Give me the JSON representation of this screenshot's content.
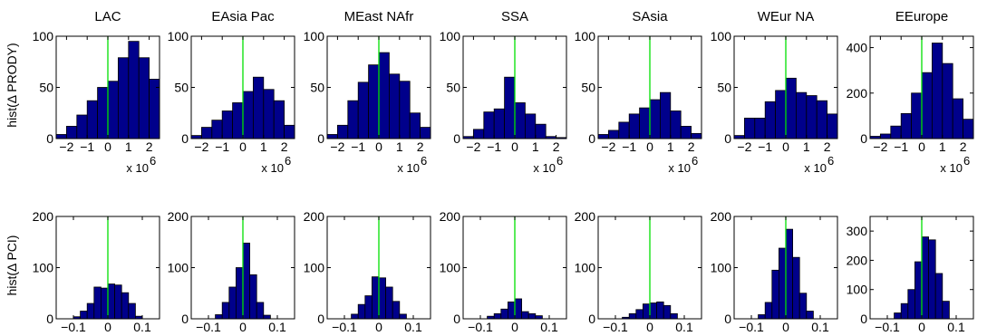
{
  "colors": {
    "bar_fill": "#00008b",
    "bar_edge": "#000000",
    "zero_line": "#00e000",
    "axes": "#000000"
  },
  "figure": {
    "row_labels": [
      "hist(Δ PRODY)",
      "hist(Δ PCI)"
    ],
    "x_exponent_label": "x 10",
    "x_exponent_power": "6"
  },
  "chart_data": [
    {
      "type": "bar",
      "row": "PRODY",
      "title": "LAC",
      "ylabel": "hist(Δ PRODY)",
      "xlim": [
        -2.5,
        2.5
      ],
      "ylim": [
        0,
        100
      ],
      "xticks": [
        -2,
        -1,
        0,
        1,
        2
      ],
      "xtick_labels": [
        "−2",
        "−1",
        "0",
        "1",
        "2"
      ],
      "yticks": [
        0,
        50,
        100
      ],
      "ytick_labels": [
        "0",
        "50",
        "100"
      ],
      "x_scale_note": "x 10^6",
      "bins": [
        -2.25,
        -1.75,
        -1.25,
        -0.75,
        -0.25,
        0.25,
        0.75,
        1.25,
        1.75,
        2.25
      ],
      "bin_width": 0.5,
      "values": [
        4,
        12,
        23,
        37,
        50,
        56,
        79,
        95,
        79,
        58
      ]
    },
    {
      "type": "bar",
      "row": "PRODY",
      "title": "EAsia Pac",
      "xlim": [
        -2.5,
        2.5
      ],
      "ylim": [
        0,
        100
      ],
      "xticks": [
        -2,
        -1,
        0,
        1,
        2
      ],
      "xtick_labels": [
        "−2",
        "−1",
        "0",
        "1",
        "2"
      ],
      "yticks": [
        0,
        50,
        100
      ],
      "ytick_labels": [
        "0",
        "50",
        "100"
      ],
      "x_scale_note": "x 10^6",
      "bins": [
        -2.25,
        -1.75,
        -1.25,
        -0.75,
        -0.25,
        0.25,
        0.75,
        1.25,
        1.75,
        2.25
      ],
      "bin_width": 0.5,
      "values": [
        3,
        11,
        18,
        27,
        35,
        46,
        60,
        48,
        37,
        13
      ]
    },
    {
      "type": "bar",
      "row": "PRODY",
      "title": "MEast NAfr",
      "xlim": [
        -2.5,
        2.5
      ],
      "ylim": [
        0,
        100
      ],
      "xticks": [
        -2,
        -1,
        0,
        1,
        2
      ],
      "xtick_labels": [
        "−2",
        "−1",
        "0",
        "1",
        "2"
      ],
      "yticks": [
        0,
        50,
        100
      ],
      "ytick_labels": [
        "0",
        "50",
        "100"
      ],
      "x_scale_note": "x 10^6",
      "bins": [
        -2.25,
        -1.75,
        -1.25,
        -0.75,
        -0.25,
        0.25,
        0.75,
        1.25,
        1.75,
        2.25
      ],
      "bin_width": 0.5,
      "values": [
        4,
        13,
        37,
        55,
        72,
        84,
        63,
        56,
        25,
        11
      ]
    },
    {
      "type": "bar",
      "row": "PRODY",
      "title": "SSA",
      "xlim": [
        -2.5,
        2.5
      ],
      "ylim": [
        0,
        100
      ],
      "xticks": [
        -2,
        -1,
        0,
        1,
        2
      ],
      "xtick_labels": [
        "−2",
        "−1",
        "0",
        "1",
        "2"
      ],
      "yticks": [
        0,
        50,
        100
      ],
      "ytick_labels": [
        "0",
        "50",
        "100"
      ],
      "x_scale_note": "x 10^6",
      "bins": [
        -2.25,
        -1.75,
        -1.25,
        -0.75,
        -0.25,
        0.25,
        0.75,
        1.25,
        1.75,
        2.25
      ],
      "bin_width": 0.5,
      "values": [
        2,
        9,
        26,
        29,
        60,
        35,
        24,
        14,
        2,
        1
      ]
    },
    {
      "type": "bar",
      "row": "PRODY",
      "title": "SAsia",
      "xlim": [
        -2.5,
        2.5
      ],
      "ylim": [
        0,
        100
      ],
      "xticks": [
        -2,
        -1,
        0,
        1,
        2
      ],
      "xtick_labels": [
        "−2",
        "−1",
        "0",
        "1",
        "2"
      ],
      "yticks": [
        0,
        50,
        100
      ],
      "ytick_labels": [
        "0",
        "50",
        "100"
      ],
      "x_scale_note": "x 10^6",
      "bins": [
        -2.25,
        -1.75,
        -1.25,
        -0.75,
        -0.25,
        0.25,
        0.75,
        1.25,
        1.75,
        2.25
      ],
      "bin_width": 0.5,
      "values": [
        4,
        8,
        16,
        24,
        30,
        38,
        45,
        27,
        12,
        5
      ]
    },
    {
      "type": "bar",
      "row": "PRODY",
      "title": "WEur NA",
      "xlim": [
        -2.5,
        2.5
      ],
      "ylim": [
        0,
        100
      ],
      "xticks": [
        -2,
        -1,
        0,
        1,
        2
      ],
      "xtick_labels": [
        "−2",
        "−1",
        "0",
        "1",
        "2"
      ],
      "yticks": [
        0,
        50,
        100
      ],
      "ytick_labels": [
        "0",
        "50",
        "100"
      ],
      "x_scale_note": "x 10^6",
      "bins": [
        -2.25,
        -1.75,
        -1.25,
        -0.75,
        -0.25,
        0.25,
        0.75,
        1.25,
        1.75,
        2.25
      ],
      "bin_width": 0.5,
      "values": [
        3,
        20,
        20,
        36,
        47,
        59,
        45,
        42,
        37,
        24
      ]
    },
    {
      "type": "bar",
      "row": "PRODY",
      "title": "EEurope",
      "xlim": [
        -2.5,
        2.5
      ],
      "ylim": [
        0,
        450
      ],
      "xticks": [
        -2,
        -1,
        0,
        1,
        2
      ],
      "xtick_labels": [
        "−2",
        "−1",
        "0",
        "1",
        "2"
      ],
      "yticks": [
        0,
        200,
        400
      ],
      "ytick_labels": [
        "0",
        "200",
        "400"
      ],
      "x_scale_note": "x 10^6",
      "bins": [
        -2.25,
        -1.75,
        -1.25,
        -0.75,
        -0.25,
        0.25,
        0.75,
        1.25,
        1.75,
        2.25
      ],
      "bin_width": 0.5,
      "values": [
        10,
        20,
        55,
        110,
        200,
        290,
        420,
        330,
        175,
        85
      ]
    },
    {
      "type": "bar",
      "row": "PCI",
      "title": "",
      "ylabel": "hist(Δ PCI)",
      "xlim": [
        -0.15,
        0.15
      ],
      "ylim": [
        0,
        200
      ],
      "xticks": [
        -0.1,
        0,
        0.1
      ],
      "xtick_labels": [
        "−0.1",
        "0",
        "0.1"
      ],
      "yticks": [
        0,
        100,
        200
      ],
      "ytick_labels": [
        "0",
        "100",
        "200"
      ],
      "bins": [
        -0.09,
        -0.07,
        -0.05,
        -0.03,
        -0.01,
        0.01,
        0.03,
        0.05,
        0.07,
        0.09
      ],
      "bin_width": 0.02,
      "values": [
        4,
        15,
        30,
        62,
        60,
        68,
        66,
        51,
        30,
        5
      ]
    },
    {
      "type": "bar",
      "row": "PCI",
      "title": "",
      "xlim": [
        -0.15,
        0.15
      ],
      "ylim": [
        0,
        200
      ],
      "xticks": [
        -0.1,
        0,
        0.1
      ],
      "xtick_labels": [
        "−0.1",
        "0",
        "0.1"
      ],
      "yticks": [
        0,
        100,
        200
      ],
      "ytick_labels": [
        "0",
        "100",
        "200"
      ],
      "bins": [
        -0.07,
        -0.05,
        -0.03,
        -0.01,
        0.01,
        0.03,
        0.05,
        0.07
      ],
      "bin_width": 0.02,
      "values": [
        8,
        32,
        62,
        100,
        148,
        86,
        32,
        7
      ]
    },
    {
      "type": "bar",
      "row": "PCI",
      "title": "",
      "xlim": [
        -0.15,
        0.15
      ],
      "ylim": [
        0,
        200
      ],
      "xticks": [
        -0.1,
        0,
        0.1
      ],
      "xtick_labels": [
        "−0.1",
        "0",
        "0.1"
      ],
      "yticks": [
        0,
        100,
        200
      ],
      "ytick_labels": [
        "0",
        "100",
        "200"
      ],
      "bins": [
        -0.07,
        -0.05,
        -0.03,
        -0.01,
        0.01,
        0.03,
        0.05,
        0.07
      ],
      "bin_width": 0.02,
      "values": [
        9,
        28,
        45,
        82,
        80,
        62,
        34,
        9
      ]
    },
    {
      "type": "bar",
      "row": "PCI",
      "title": "",
      "xlim": [
        -0.15,
        0.15
      ],
      "ylim": [
        0,
        200
      ],
      "xticks": [
        -0.1,
        0,
        0.1
      ],
      "xtick_labels": [
        "−0.1",
        "0",
        "0.1"
      ],
      "yticks": [
        0,
        100,
        200
      ],
      "ytick_labels": [
        "0",
        "100",
        "200"
      ],
      "bins": [
        -0.07,
        -0.05,
        -0.03,
        -0.01,
        0.01,
        0.03,
        0.05,
        0.07
      ],
      "bin_width": 0.02,
      "values": [
        5,
        10,
        19,
        33,
        39,
        14,
        10,
        6
      ]
    },
    {
      "type": "bar",
      "row": "PCI",
      "title": "",
      "xlim": [
        -0.15,
        0.15
      ],
      "ylim": [
        0,
        200
      ],
      "xticks": [
        -0.1,
        0,
        0.1
      ],
      "xtick_labels": [
        "−0.1",
        "0",
        "0.1"
      ],
      "yticks": [
        0,
        100,
        200
      ],
      "ytick_labels": [
        "0",
        "100",
        "200"
      ],
      "bins": [
        -0.07,
        -0.05,
        -0.03,
        -0.01,
        0.01,
        0.03,
        0.05,
        0.07
      ],
      "bin_width": 0.02,
      "values": [
        3,
        10,
        18,
        29,
        31,
        33,
        26,
        10
      ]
    },
    {
      "type": "bar",
      "row": "PCI",
      "title": "",
      "xlim": [
        -0.15,
        0.15
      ],
      "ylim": [
        0,
        200
      ],
      "xticks": [
        -0.1,
        0,
        0.1
      ],
      "xtick_labels": [
        "−0.1",
        "0",
        "0.1"
      ],
      "yticks": [
        0,
        100,
        200
      ],
      "ytick_labels": [
        "0",
        "100",
        "200"
      ],
      "bins": [
        -0.07,
        -0.05,
        -0.03,
        -0.01,
        0.01,
        0.03,
        0.05,
        0.07
      ],
      "bin_width": 0.02,
      "values": [
        8,
        32,
        95,
        138,
        175,
        120,
        50,
        15
      ]
    },
    {
      "type": "bar",
      "row": "PCI",
      "title": "",
      "xlim": [
        -0.15,
        0.15
      ],
      "ylim": [
        0,
        350
      ],
      "xticks": [
        -0.1,
        0,
        0.1
      ],
      "xtick_labels": [
        "−0.1",
        "0",
        "0.1"
      ],
      "yticks": [
        0,
        100,
        200,
        300
      ],
      "ytick_labels": [
        "0",
        "100",
        "200",
        "300"
      ],
      "bins": [
        -0.07,
        -0.05,
        -0.03,
        -0.01,
        0.01,
        0.03,
        0.05,
        0.07
      ],
      "bin_width": 0.02,
      "values": [
        20,
        52,
        100,
        195,
        280,
        270,
        155,
        60
      ]
    }
  ]
}
